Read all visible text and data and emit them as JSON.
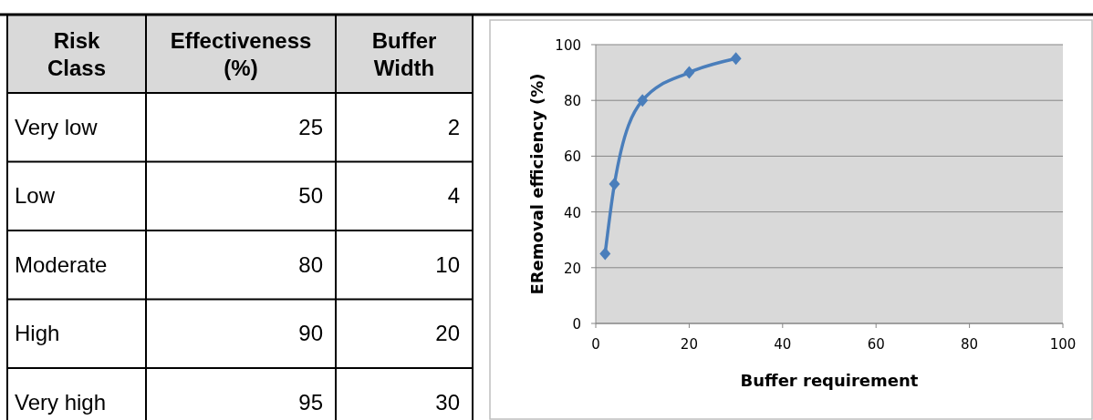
{
  "chart_data": [
    {
      "type": "other",
      "legend_title": "Risk Class",
      "data_labels": true,
      "categories": [
        "Very low",
        "Low",
        "Moderate",
        "High",
        "Very high"
      ],
      "series": [
        {
          "name": "Effectiveness (%)",
          "values": [
            25,
            50,
            80,
            90,
            95
          ]
        },
        {
          "name": "Buffer Width",
          "values": [
            2,
            4,
            10,
            20,
            30
          ]
        }
      ]
    },
    {
      "type": "line",
      "x": [
        2,
        4,
        10,
        20,
        30
      ],
      "series": [
        {
          "color": "#4a7ebb",
          "values": [
            25,
            50,
            80,
            90,
            95
          ]
        }
      ],
      "xlim": [
        0,
        100
      ],
      "xticks": [
        0,
        20,
        40,
        60,
        80,
        100
      ],
      "ylim": [
        0,
        100
      ],
      "yticks": [
        0,
        20,
        40,
        60,
        80,
        100
      ],
      "grid": "y",
      "marker": "diamond",
      "line_style": "solid",
      "xlabel": "Buffer requirement",
      "ylabel": "ERemoval efficiency (%)"
    }
  ]
}
